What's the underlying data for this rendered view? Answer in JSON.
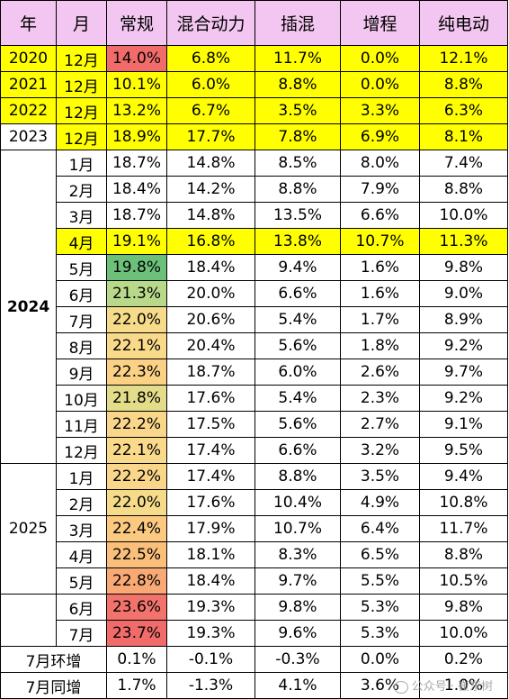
{
  "headers": [
    "年",
    "月",
    "常规",
    "混合动力",
    "插混",
    "增程",
    "纯电动"
  ],
  "colors": {
    "header_bg": "#f3c6f1",
    "highlight_yellow": "#ffff00",
    "heat_red": "#f26b6b",
    "heat_green": "#6cc07a",
    "heat_yellow": "#ffe28a"
  },
  "year_groups": [
    {
      "label": "2020",
      "bold": false,
      "yellow": true,
      "rows": [
        0
      ]
    },
    {
      "label": "2021",
      "bold": false,
      "yellow": true,
      "rows": [
        1
      ]
    },
    {
      "label": "2022",
      "bold": false,
      "yellow": true,
      "rows": [
        2
      ]
    },
    {
      "label": "2023",
      "bold": false,
      "yellow": false,
      "rows": [
        3
      ]
    },
    {
      "label": "2024",
      "bold": true,
      "yellow": false,
      "rows": [
        4,
        5,
        6,
        7,
        8,
        9,
        10,
        11,
        12,
        13,
        14,
        15
      ]
    },
    {
      "label": "2025",
      "bold": false,
      "yellow": false,
      "rows": [
        16,
        17,
        18,
        19,
        20
      ]
    },
    {
      "label": "",
      "bold": false,
      "yellow": false,
      "rows": [
        21,
        22
      ]
    }
  ],
  "rows": [
    {
      "month": "12月",
      "yellow": true,
      "cells": [
        "14.0%",
        "6.8%",
        "11.7%",
        "0.0%",
        "12.1%"
      ],
      "heat": "#f26b6b"
    },
    {
      "month": "12月",
      "yellow": true,
      "cells": [
        "10.1%",
        "6.0%",
        "8.8%",
        "0.0%",
        "8.8%"
      ],
      "heat": null
    },
    {
      "month": "12月",
      "yellow": true,
      "cells": [
        "13.2%",
        "6.7%",
        "3.5%",
        "3.3%",
        "6.3%"
      ],
      "heat": null
    },
    {
      "month": "12月",
      "yellow": false,
      "cells": [
        "18.9%",
        "17.7%",
        "7.8%",
        "6.9%",
        "8.1%"
      ],
      "heat": null,
      "month_yellow": true
    },
    {
      "month": "1月",
      "yellow": false,
      "cells": [
        "18.7%",
        "14.8%",
        "8.5%",
        "8.0%",
        "7.4%"
      ],
      "heat": null
    },
    {
      "month": "2月",
      "yellow": false,
      "cells": [
        "18.4%",
        "14.2%",
        "8.8%",
        "7.9%",
        "8.8%"
      ],
      "heat": null
    },
    {
      "month": "3月",
      "yellow": false,
      "cells": [
        "18.7%",
        "14.8%",
        "13.5%",
        "6.6%",
        "10.0%"
      ],
      "heat": null
    },
    {
      "month": "4月",
      "yellow": true,
      "cells": [
        "19.1%",
        "16.8%",
        "13.8%",
        "10.7%",
        "11.3%"
      ],
      "heat": null
    },
    {
      "month": "5月",
      "yellow": false,
      "cells": [
        "19.8%",
        "18.4%",
        "9.4%",
        "1.6%",
        "9.8%"
      ],
      "heat": "#6cc07a"
    },
    {
      "month": "6月",
      "yellow": false,
      "cells": [
        "21.3%",
        "20.0%",
        "6.6%",
        "1.6%",
        "9.0%"
      ],
      "heat": "#b9d98a"
    },
    {
      "month": "7月",
      "yellow": false,
      "cells": [
        "22.0%",
        "20.6%",
        "5.4%",
        "1.7%",
        "8.9%"
      ],
      "heat": "#f6dc8a"
    },
    {
      "month": "8月",
      "yellow": false,
      "cells": [
        "22.1%",
        "20.4%",
        "5.6%",
        "1.8%",
        "9.2%"
      ],
      "heat": "#f9d98a"
    },
    {
      "month": "9月",
      "yellow": false,
      "cells": [
        "22.3%",
        "18.7%",
        "6.0%",
        "2.6%",
        "9.7%"
      ],
      "heat": "#fbd186"
    },
    {
      "month": "10月",
      "yellow": false,
      "cells": [
        "21.8%",
        "17.6%",
        "5.4%",
        "2.3%",
        "9.2%"
      ],
      "heat": "#e3dc88"
    },
    {
      "month": "11月",
      "yellow": false,
      "cells": [
        "22.2%",
        "17.5%",
        "5.6%",
        "2.7%",
        "9.1%"
      ],
      "heat": "#f9d68a"
    },
    {
      "month": "12月",
      "yellow": false,
      "cells": [
        "22.1%",
        "17.4%",
        "6.6%",
        "3.2%",
        "9.5%"
      ],
      "heat": "#f9d98a"
    },
    {
      "month": "1月",
      "yellow": false,
      "cells": [
        "22.2%",
        "17.4%",
        "8.8%",
        "3.5%",
        "9.4%"
      ],
      "heat": "#f9d68a"
    },
    {
      "month": "2月",
      "yellow": false,
      "cells": [
        "22.0%",
        "17.6%",
        "10.4%",
        "4.9%",
        "10.8%"
      ],
      "heat": "#f6dc8a"
    },
    {
      "month": "3月",
      "yellow": false,
      "cells": [
        "22.4%",
        "17.9%",
        "10.7%",
        "6.4%",
        "11.7%"
      ],
      "heat": "#fbc97f"
    },
    {
      "month": "4月",
      "yellow": false,
      "cells": [
        "22.5%",
        "18.1%",
        "8.3%",
        "6.5%",
        "8.8%"
      ],
      "heat": "#fbbf7c"
    },
    {
      "month": "5月",
      "yellow": false,
      "cells": [
        "22.8%",
        "18.4%",
        "9.7%",
        "5.5%",
        "10.5%"
      ],
      "heat": "#f9a974"
    },
    {
      "month": "6月",
      "yellow": false,
      "cells": [
        "23.6%",
        "19.3%",
        "9.8%",
        "5.3%",
        "9.8%"
      ],
      "heat": "#f2736b"
    },
    {
      "month": "7月",
      "yellow": false,
      "cells": [
        "23.7%",
        "19.3%",
        "9.6%",
        "5.3%",
        "10.0%"
      ],
      "heat": "#f26b6b"
    }
  ],
  "summary_rows": [
    {
      "label": "7月环增",
      "cells": [
        "0.1%",
        "-0.1%",
        "-0.3%",
        "0.0%",
        "0.2%"
      ]
    },
    {
      "label": "7月同增",
      "cells": [
        "1.7%",
        "-1.3%",
        "4.1%",
        "3.6%",
        "1.0%"
      ]
    }
  ],
  "watermark": "公众号 · 崔东树"
}
